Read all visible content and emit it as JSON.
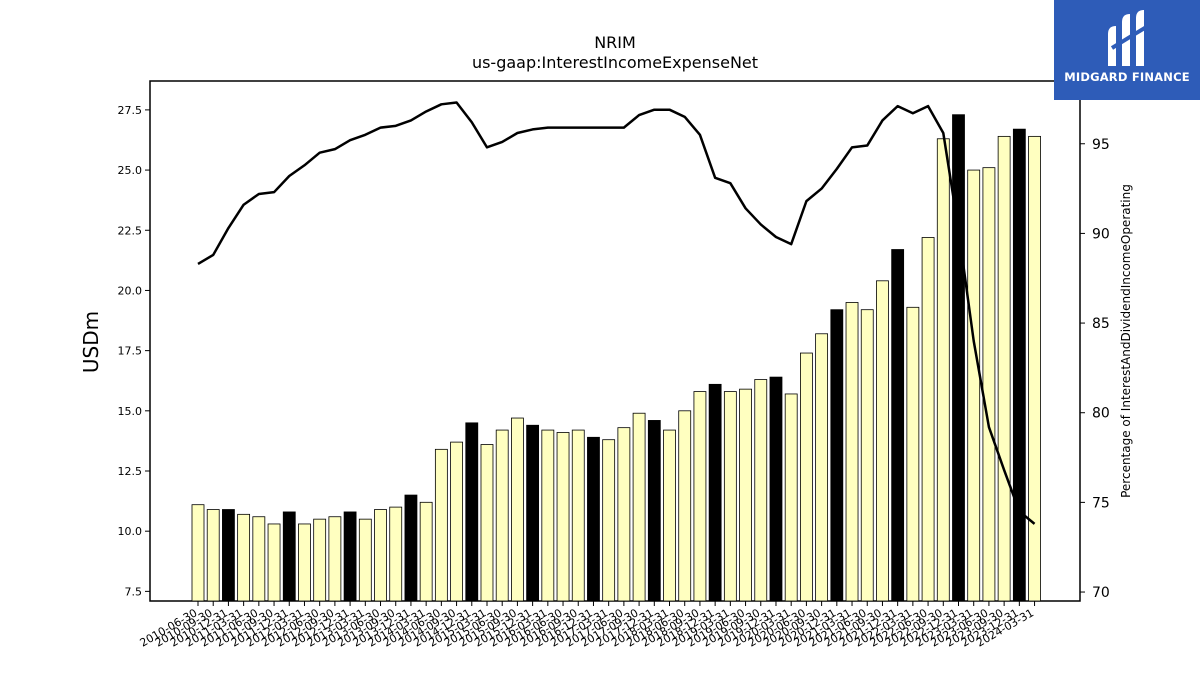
{
  "chart_data": {
    "type": "bar+line",
    "title": "NRIM",
    "subtitle": "us-gaap:InterestIncomeExpenseNet",
    "ylabel_left": "USDm",
    "ylabel_right": "Percentage of InterestAndDividendIncomeOperating",
    "ylim_left": [
      7.1,
      28.7
    ],
    "ylim_right": [
      69.5,
      98.5
    ],
    "yticks_left": [
      "7.5",
      "10.0",
      "12.5",
      "15.0",
      "17.5",
      "20.0",
      "22.5",
      "25.0",
      "27.5"
    ],
    "yticks_right": [
      "70",
      "75",
      "80",
      "85",
      "90",
      "95"
    ],
    "categories": [
      "2010-06-30",
      "2010-09-30",
      "2010-12-31",
      "2011-03-31",
      "2011-06-30",
      "2011-09-30",
      "2011-12-31",
      "2012-03-31",
      "2012-06-30",
      "2012-09-30",
      "2012-12-31",
      "2013-03-31",
      "2013-06-30",
      "2013-09-30",
      "2013-12-31",
      "2014-03-31",
      "2014-06-30",
      "2014-09-30",
      "2014-12-31",
      "2015-03-31",
      "2015-06-30",
      "2015-09-30",
      "2015-12-31",
      "2016-03-31",
      "2016-06-30",
      "2016-09-30",
      "2016-12-31",
      "2017-03-31",
      "2017-06-30",
      "2017-09-30",
      "2017-12-31",
      "2018-03-31",
      "2018-06-30",
      "2018-09-30",
      "2018-12-31",
      "2019-03-31",
      "2019-06-30",
      "2019-09-30",
      "2019-12-31",
      "2020-03-31",
      "2020-06-30",
      "2020-09-30",
      "2020-12-31",
      "2021-03-31",
      "2021-06-30",
      "2021-09-30",
      "2021-12-31",
      "2022-03-31",
      "2022-06-30",
      "2022-09-30",
      "2022-12-31",
      "2023-03-31",
      "2023-06-30",
      "2023-09-30",
      "2023-12-31",
      "2024-03-31"
    ],
    "bars": {
      "name": "InterestIncomeExpenseNet",
      "values": [
        11.1,
        10.9,
        10.9,
        10.7,
        10.6,
        10.3,
        10.8,
        10.3,
        10.5,
        10.6,
        10.8,
        10.5,
        10.9,
        11.0,
        11.5,
        11.2,
        13.4,
        13.7,
        14.5,
        13.6,
        14.2,
        14.7,
        14.4,
        14.2,
        14.1,
        14.2,
        13.9,
        13.8,
        14.3,
        14.9,
        14.6,
        14.2,
        15.0,
        15.8,
        16.1,
        15.8,
        15.9,
        16.3,
        16.4,
        15.7,
        17.4,
        18.2,
        19.2,
        19.5,
        19.2,
        20.4,
        21.7,
        19.3,
        22.2,
        26.3,
        27.3,
        25.0,
        25.1,
        26.4,
        26.7,
        26.4
      ],
      "highlight": [
        false,
        false,
        true,
        false,
        false,
        false,
        true,
        false,
        false,
        false,
        true,
        false,
        false,
        false,
        true,
        false,
        false,
        false,
        true,
        false,
        false,
        false,
        true,
        false,
        false,
        false,
        true,
        false,
        false,
        false,
        true,
        false,
        false,
        false,
        true,
        false,
        false,
        false,
        true,
        false,
        false,
        false,
        true,
        false,
        false,
        false,
        true,
        false,
        false,
        false,
        true,
        false,
        false,
        false,
        true,
        false
      ],
      "color": "#ffffc0",
      "highlight_color": "#000000"
    },
    "line": {
      "name": "Percentage of InterestAndDividendIncomeOperating",
      "values": [
        88.3,
        88.8,
        90.3,
        91.6,
        92.2,
        92.3,
        93.2,
        93.8,
        94.5,
        94.7,
        95.2,
        95.5,
        95.9,
        96.0,
        96.3,
        96.8,
        97.2,
        97.3,
        96.2,
        94.8,
        95.1,
        95.6,
        95.8,
        95.9,
        95.9,
        95.9,
        95.9,
        95.9,
        95.9,
        96.6,
        96.9,
        96.9,
        96.5,
        95.5,
        93.1,
        92.8,
        91.4,
        90.5,
        89.8,
        89.4,
        91.8,
        92.5,
        93.6,
        94.8,
        94.9,
        96.3,
        97.1,
        96.7,
        97.1,
        95.6,
        90.2,
        84.0,
        79.2,
        76.8,
        74.5,
        73.8
      ],
      "color": "#000000"
    },
    "grid": false,
    "legend": "none"
  },
  "logo": {
    "text": "MIDGARD FINANCE",
    "bg": "#2e5cb8",
    "fg": "#ffffff"
  }
}
